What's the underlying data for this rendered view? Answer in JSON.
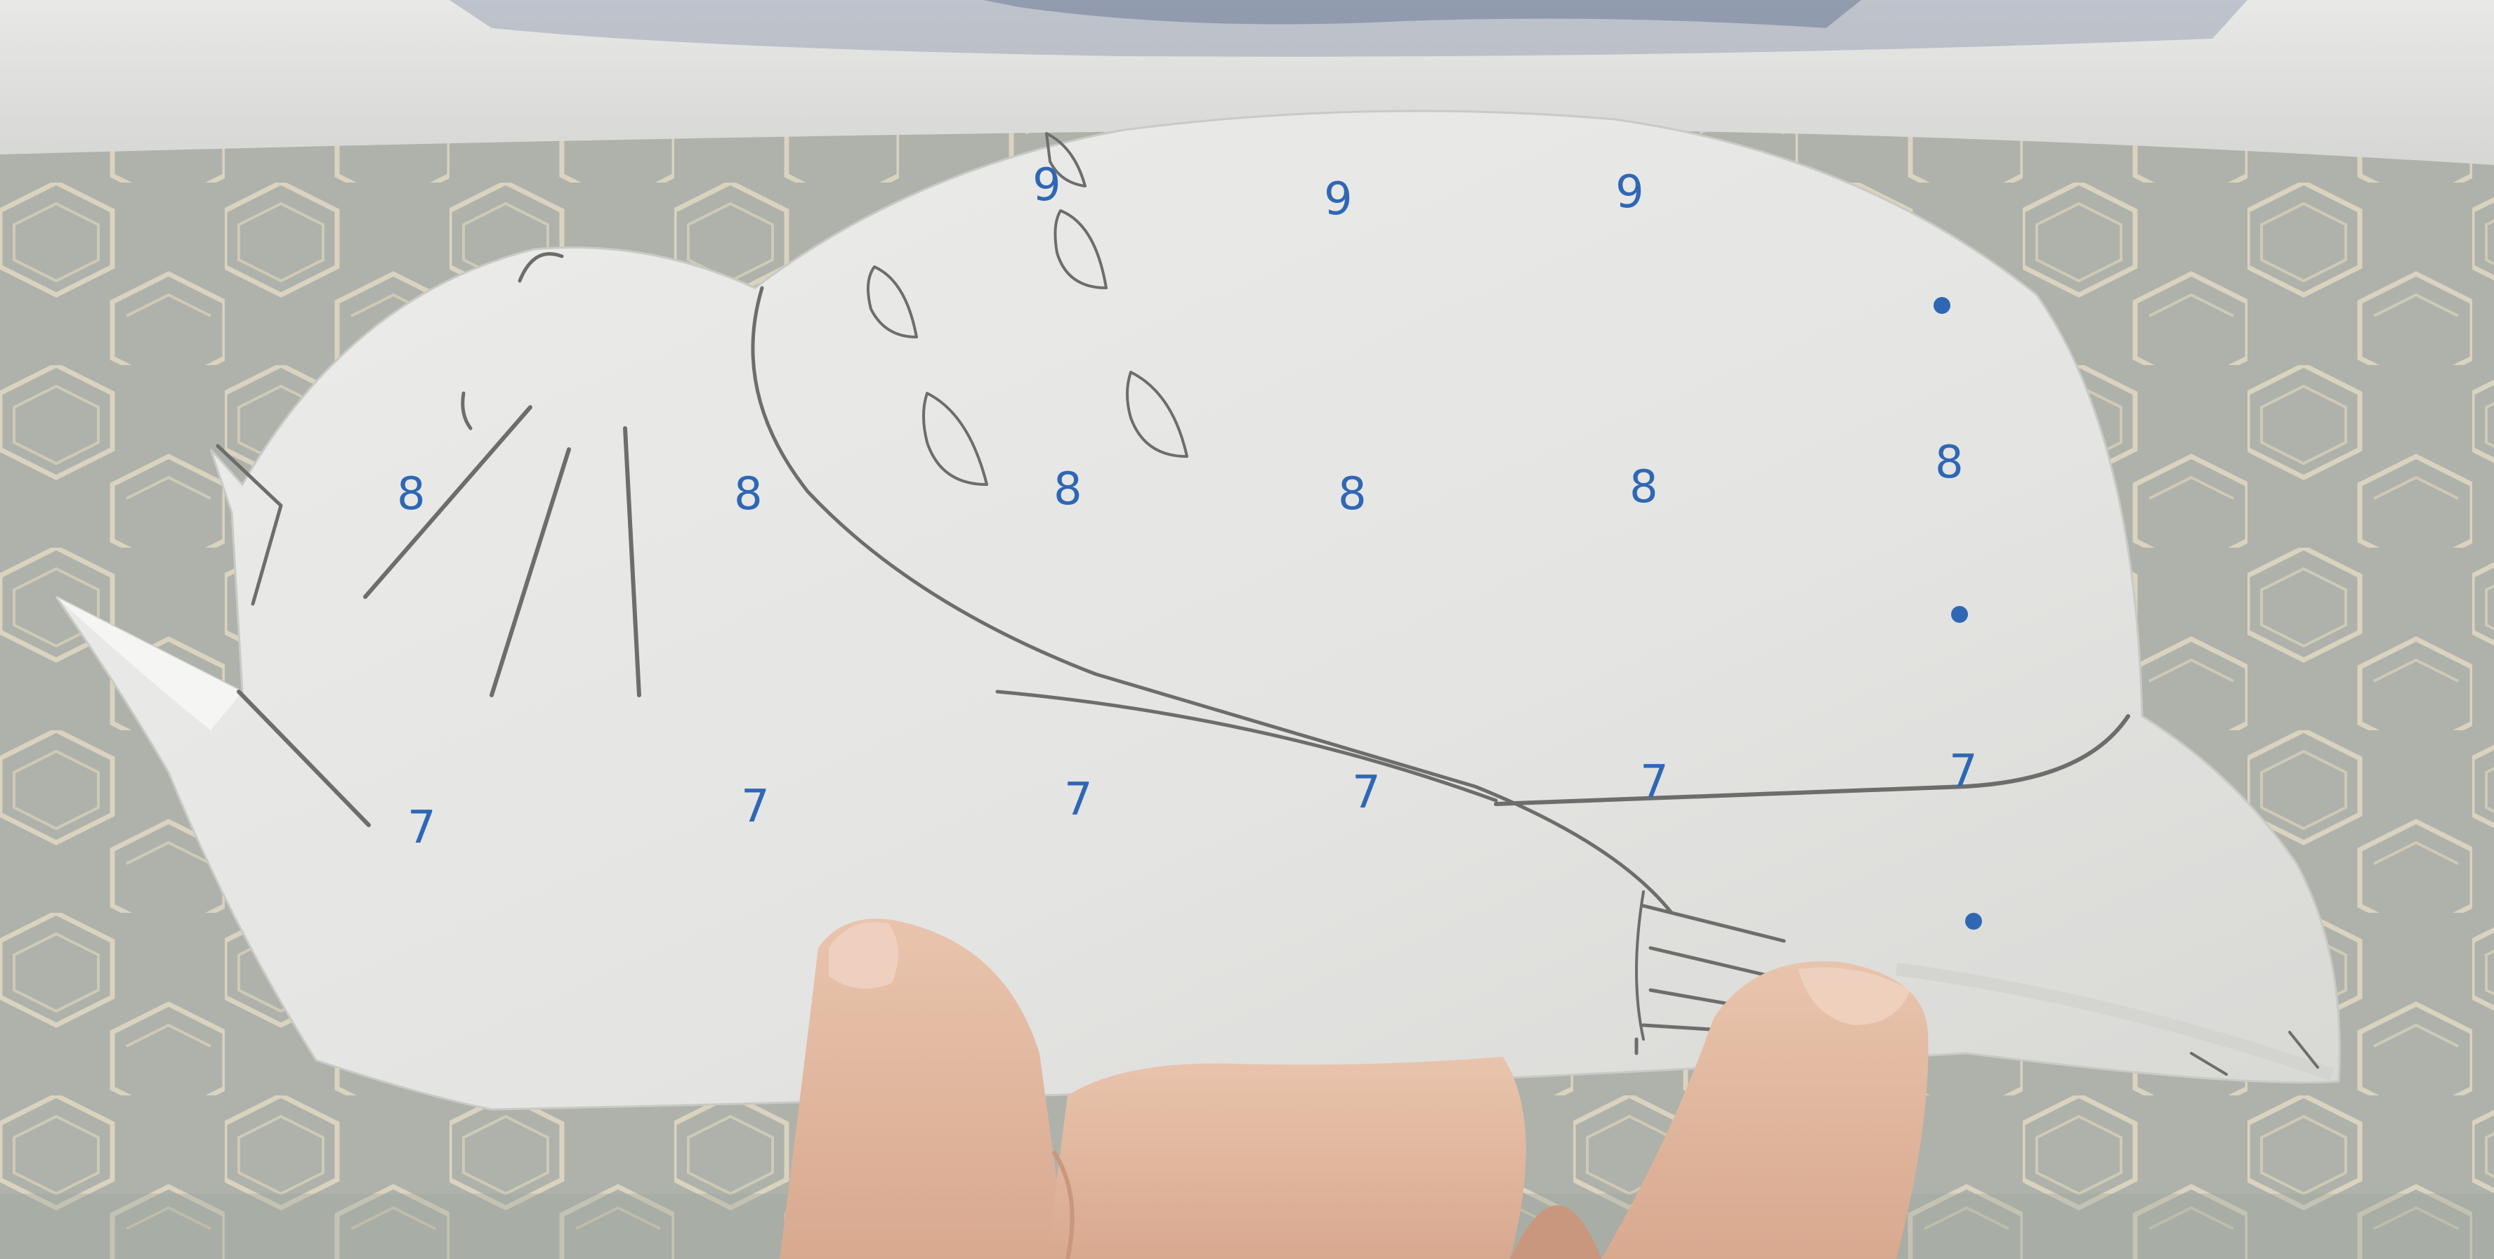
{
  "scene": {
    "colors": {
      "paper": "#e9e9e7",
      "paper_shadow": "#d9d9d6",
      "ink": "#2f67b5",
      "pencil": "#6d6d6d",
      "tablecloth": "#aeb2ab",
      "tablecloth_lines": "#d9d3bf",
      "wall": "#e3e3e1",
      "skin": "#e2b9a0",
      "skin_dark": "#c9977d"
    },
    "sheet": {
      "row_top": [
        "9",
        "9",
        "9"
      ],
      "row_middle": [
        "8",
        "8",
        "8",
        "8",
        "8",
        "8"
      ],
      "row_bottom": [
        "7",
        "7",
        "7",
        "7",
        "7",
        "7"
      ]
    }
  }
}
